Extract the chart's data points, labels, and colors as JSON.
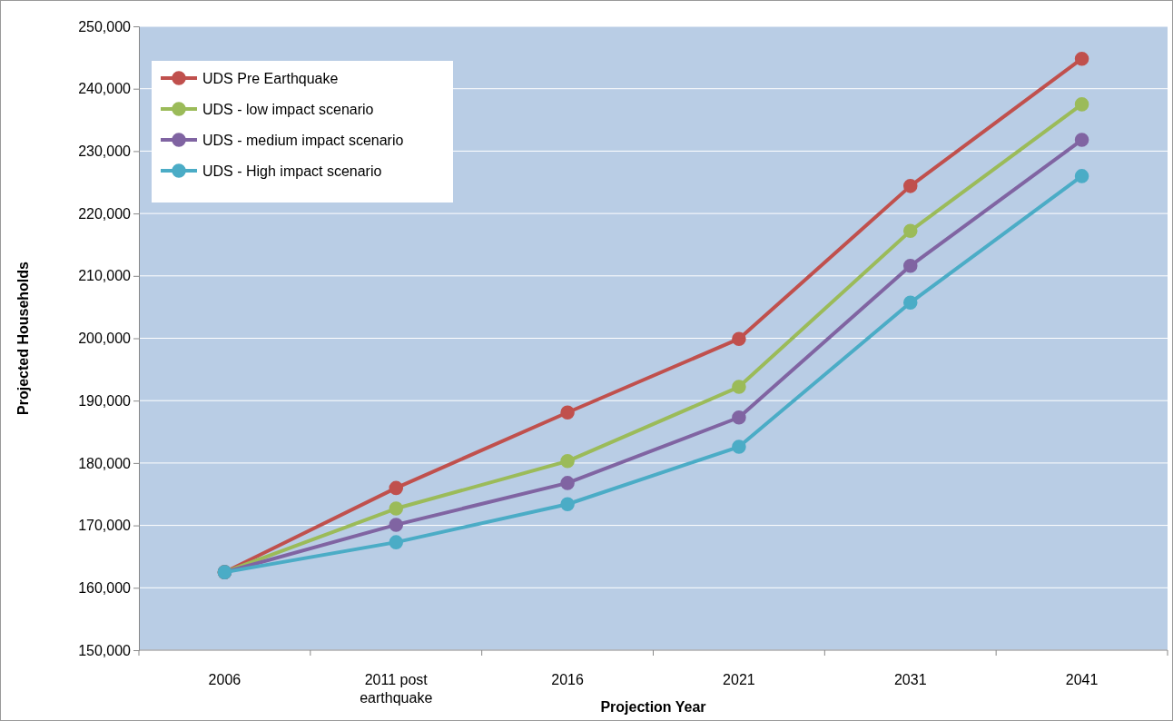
{
  "chart_data": {
    "type": "line",
    "xlabel": "Projection Year",
    "ylabel": "Projected Households",
    "categories": [
      "2006",
      "2011 post earthquake",
      "2016",
      "2021",
      "2031",
      "2041"
    ],
    "series": [
      {
        "name": "UDS Pre Earthquake",
        "color": "#c0504d",
        "values": [
          162500,
          176000,
          188100,
          199900,
          224400,
          244800
        ]
      },
      {
        "name": "UDS - low impact scenario",
        "color": "#9bbb59",
        "values": [
          162500,
          172700,
          180300,
          192200,
          217200,
          237500
        ]
      },
      {
        "name": "UDS - medium impact scenario",
        "color": "#8064a2",
        "values": [
          162500,
          170100,
          176800,
          187300,
          211600,
          231800
        ]
      },
      {
        "name": "UDS - High impact scenario",
        "color": "#4bacc6",
        "values": [
          162500,
          167300,
          173400,
          182600,
          205700,
          226000
        ]
      }
    ],
    "ylim": [
      150000,
      250000
    ],
    "yticks": [
      {
        "value": 150000,
        "label": "150,000"
      },
      {
        "value": 160000,
        "label": "160,000"
      },
      {
        "value": 170000,
        "label": "170,000"
      },
      {
        "value": 180000,
        "label": "180,000"
      },
      {
        "value": 190000,
        "label": "190,000"
      },
      {
        "value": 200000,
        "label": "200,000"
      },
      {
        "value": 210000,
        "label": "210,000"
      },
      {
        "value": 220000,
        "label": "220,000"
      },
      {
        "value": 230000,
        "label": "230,000"
      },
      {
        "value": 240000,
        "label": "240,000"
      },
      {
        "value": 250000,
        "label": "250,000"
      }
    ],
    "grid": "y",
    "legend": "top left",
    "marker": "circle",
    "line_style": "solid"
  }
}
